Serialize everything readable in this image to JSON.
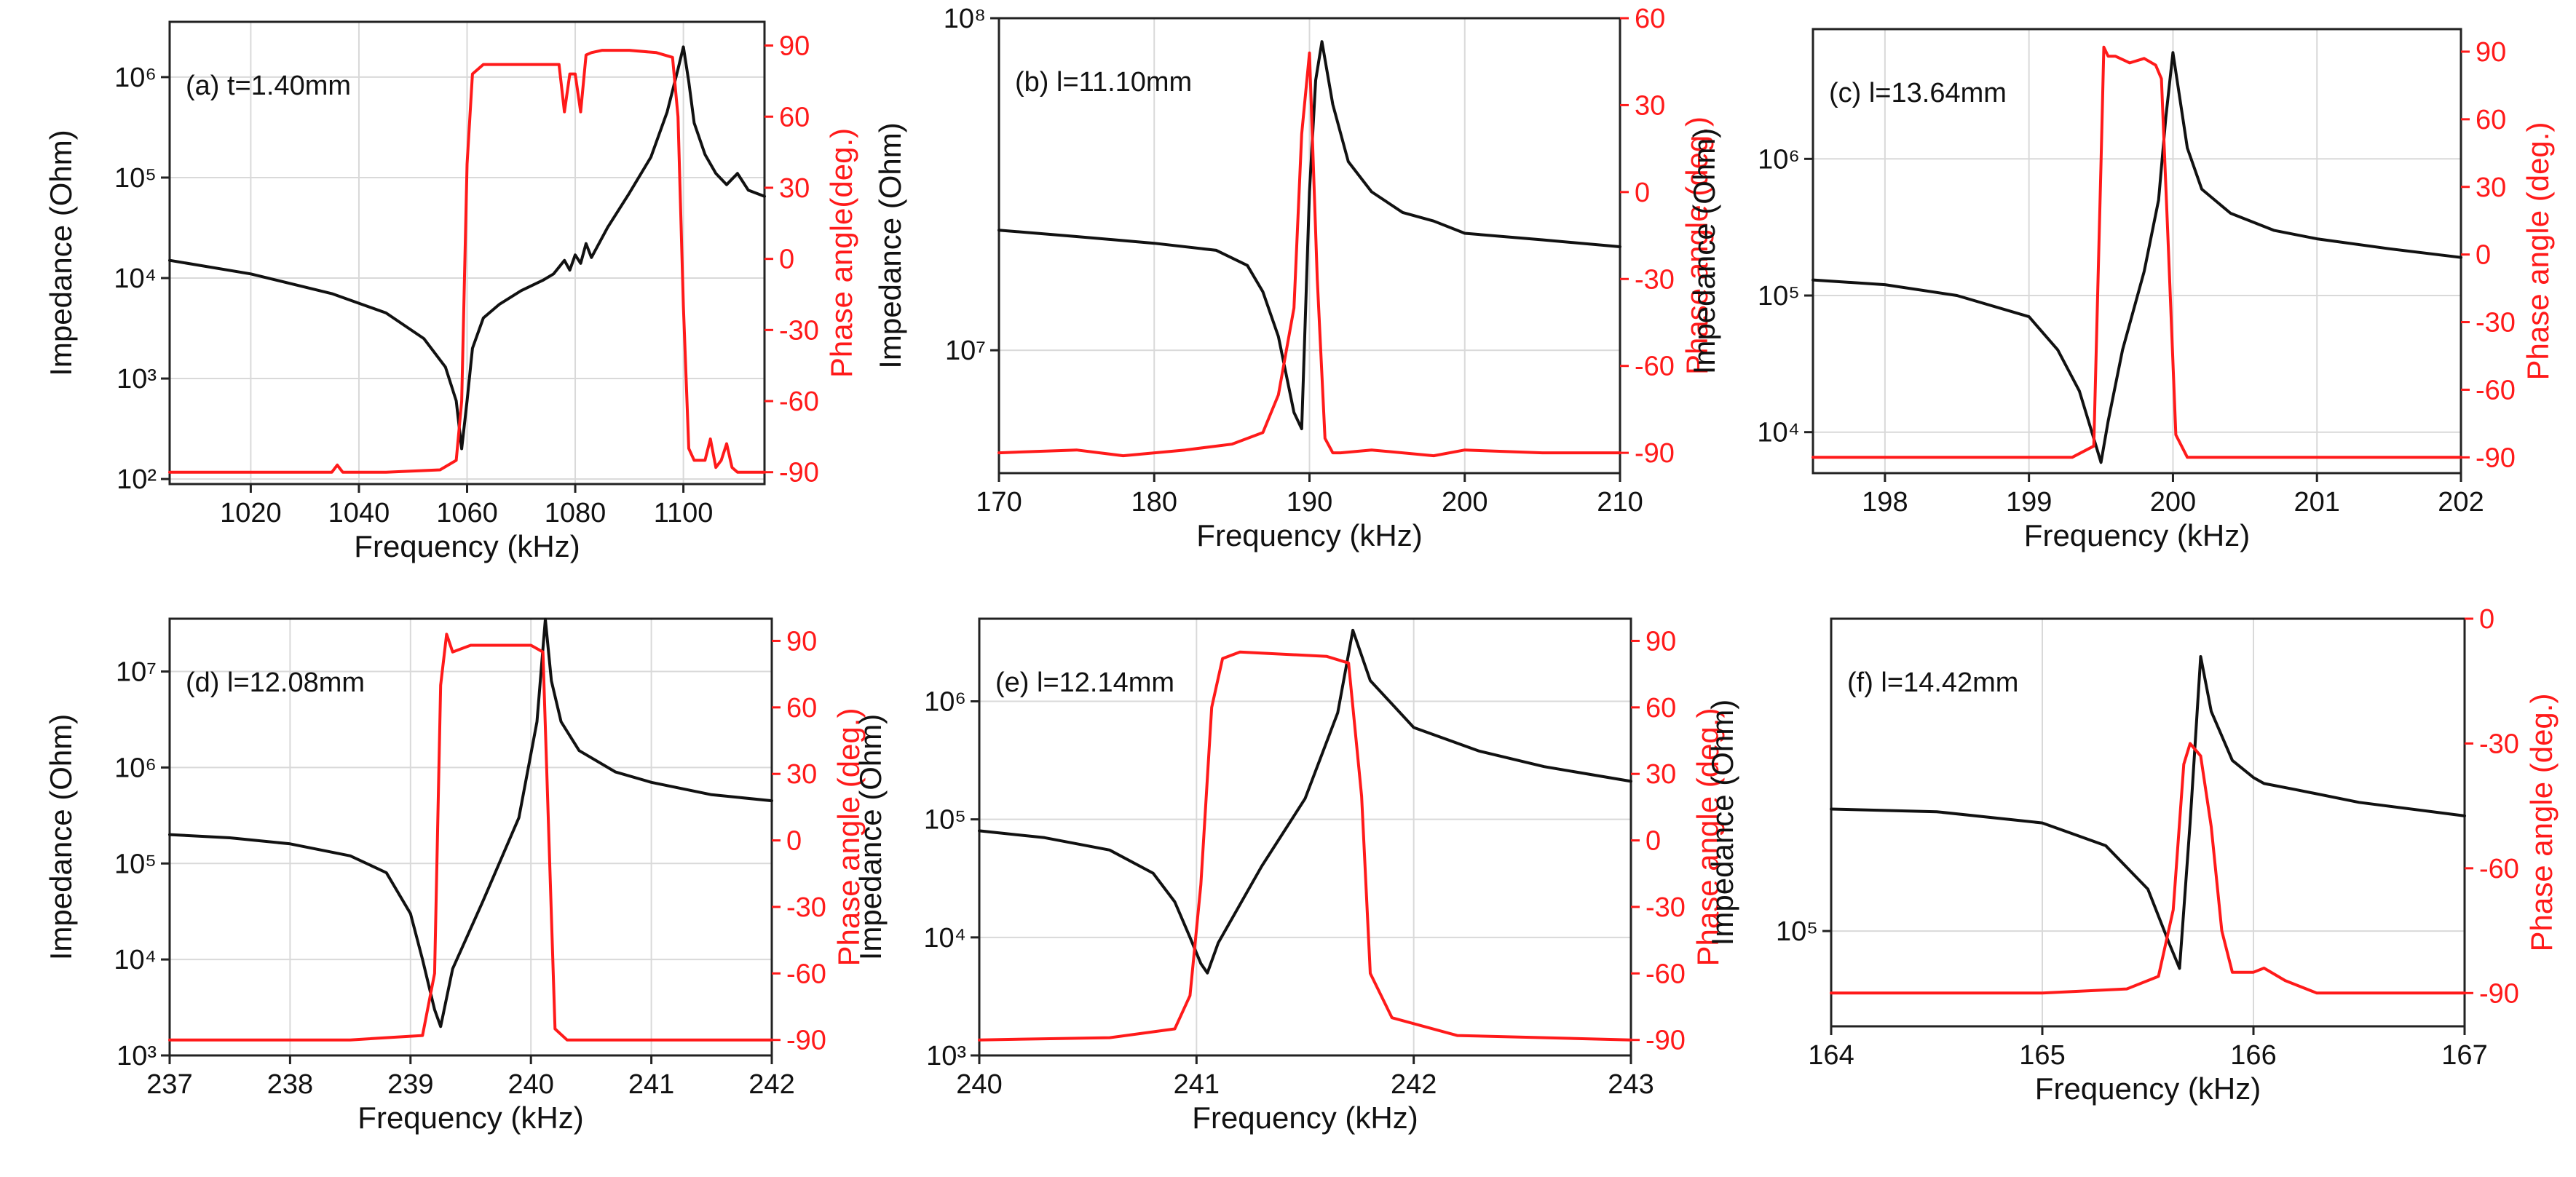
{
  "figure": {
    "description_domain": "impedance-phase spectra",
    "colors": {
      "impedance": "#111111",
      "phase": "#ff1a1a",
      "grid": "#d9d9d9",
      "axis": "#222222"
    }
  },
  "chart_data": [
    {
      "type": "line",
      "panel_label": "(a) t=1.40mm",
      "xlabel": "Frequency (kHz)",
      "ylabel_left": "Impedance (Ohm)",
      "ylabel_right": "Phase angle(deg.)",
      "left_scale": "log",
      "xlim": [
        1005,
        1115
      ],
      "x_ticks": [
        1020,
        1040,
        1060,
        1080,
        1100
      ],
      "ylim_left_log10": [
        1.95,
        6.55
      ],
      "y_ticks_left": [
        2,
        3,
        4,
        5,
        6
      ],
      "y_ticks_left_labels": [
        "10²",
        "10³",
        "10⁴",
        "10⁵",
        "10⁶"
      ],
      "ylim_right": [
        -95,
        100
      ],
      "y_ticks_right": [
        90,
        60,
        30,
        0,
        -30,
        -60,
        -90
      ],
      "series": [
        {
          "name": "Impedance",
          "color": "#111111",
          "x": [
            1005,
            1020,
            1035,
            1045,
            1052,
            1056,
            1058,
            1059,
            1060,
            1061,
            1063,
            1066,
            1070,
            1074,
            1076,
            1078,
            1079,
            1080,
            1081,
            1082,
            1083,
            1086,
            1090,
            1094,
            1097,
            1099,
            1100,
            1101,
            1102,
            1104,
            1106,
            1108,
            1110,
            1112,
            1115
          ],
          "values": [
            15000,
            11000,
            7000,
            4500,
            2500,
            1300,
            600,
            200,
            600,
            2000,
            4000,
            5500,
            7500,
            9500,
            11000,
            15000,
            12000,
            17000,
            14000,
            22000,
            16000,
            32000,
            70000,
            160000,
            450000,
            1200000,
            2000000,
            900000,
            350000,
            170000,
            110000,
            85000,
            110000,
            75000,
            65000
          ]
        },
        {
          "name": "Phase angle",
          "color": "#ff1a1a",
          "x": [
            1005,
            1020,
            1035,
            1036,
            1037,
            1045,
            1055,
            1058,
            1059,
            1060,
            1061,
            1063,
            1070,
            1077,
            1078,
            1079,
            1080,
            1081,
            1082,
            1083,
            1085,
            1090,
            1095,
            1098,
            1099,
            1100,
            1101,
            1102,
            1104,
            1105,
            1106,
            1107,
            1108,
            1109,
            1110,
            1112,
            1115
          ],
          "values": [
            -90,
            -90,
            -90,
            -87,
            -90,
            -90,
            -89,
            -85,
            -60,
            40,
            78,
            82,
            82,
            82,
            62,
            78,
            78,
            62,
            86,
            87,
            88,
            88,
            87,
            85,
            60,
            -20,
            -80,
            -85,
            -85,
            -76,
            -88,
            -85,
            -78,
            -88,
            -90,
            -90,
            -90
          ]
        }
      ]
    },
    {
      "type": "line",
      "panel_label": "(b) l=11.10mm",
      "xlabel": "Frequency (kHz)",
      "ylabel_left": "Impedance (Ohm)",
      "ylabel_right": "Phase angle (deg.)",
      "left_scale": "log",
      "xlim": [
        170,
        210
      ],
      "x_ticks": [
        170,
        180,
        190,
        200,
        210
      ],
      "ylim_left_log10": [
        6.63,
        8.0
      ],
      "y_ticks_left": [
        7,
        8
      ],
      "y_ticks_left_labels": [
        "10⁷",
        "10⁸"
      ],
      "ylim_right": [
        -97,
        60
      ],
      "y_ticks_right": [
        60,
        30,
        0,
        -30,
        -60,
        -90
      ],
      "series": [
        {
          "name": "Impedance",
          "color": "#111111",
          "x": [
            170,
            175,
            180,
            184,
            186,
            187,
            188,
            189,
            189.5,
            190,
            190.4,
            190.8,
            191.5,
            192.5,
            194,
            196,
            198,
            200,
            205,
            210
          ],
          "values": [
            23000000,
            22000000,
            21000000,
            20000000,
            18000000,
            15000000,
            11000000,
            6500000,
            5800000,
            30000000,
            65000000,
            85000000,
            55000000,
            37000000,
            30000000,
            26000000,
            24500000,
            22500000,
            21500000,
            20500000
          ]
        },
        {
          "name": "Phase angle",
          "color": "#ff1a1a",
          "x": [
            170,
            175,
            178,
            182,
            185,
            187,
            188,
            189,
            189.5,
            190,
            190.5,
            191,
            191.5,
            192,
            194,
            198,
            200,
            205,
            210
          ],
          "values": [
            -90,
            -89,
            -91,
            -89,
            -87,
            -83,
            -70,
            -40,
            20,
            48,
            -30,
            -85,
            -90,
            -90,
            -89,
            -91,
            -89,
            -90,
            -90
          ]
        }
      ]
    },
    {
      "type": "line",
      "panel_label": "(c) l=13.64mm",
      "xlabel": "Frequency (kHz)",
      "ylabel_left": "Impedance (Ohm)",
      "ylabel_right": "Phase angle (deg.)",
      "left_scale": "log",
      "xlim": [
        197.5,
        202
      ],
      "x_ticks": [
        198,
        199,
        200,
        201,
        202
      ],
      "ylim_left_log10": [
        3.7,
        6.95
      ],
      "y_ticks_left": [
        4,
        5,
        6
      ],
      "y_ticks_left_labels": [
        "10⁴",
        "10⁵",
        "10⁶"
      ],
      "ylim_right": [
        -97,
        100
      ],
      "y_ticks_right": [
        90,
        60,
        30,
        0,
        -30,
        -60,
        -90
      ],
      "series": [
        {
          "name": "Impedance",
          "color": "#111111",
          "x": [
            197.5,
            198,
            198.5,
            199,
            199.2,
            199.35,
            199.45,
            199.5,
            199.55,
            199.65,
            199.8,
            199.9,
            199.95,
            200.0,
            200.1,
            200.2,
            200.4,
            200.7,
            201,
            201.5,
            202
          ],
          "values": [
            130000,
            120000,
            100000,
            70000,
            40000,
            20000,
            9000,
            6000,
            12000,
            40000,
            150000,
            500000,
            2000000,
            6000000,
            1200000,
            600000,
            400000,
            300000,
            260000,
            220000,
            190000
          ]
        },
        {
          "name": "Phase angle",
          "color": "#ff1a1a",
          "x": [
            197.5,
            198.5,
            199.3,
            199.45,
            199.5,
            199.52,
            199.55,
            199.6,
            199.7,
            199.8,
            199.88,
            199.92,
            199.97,
            200.02,
            200.1,
            201,
            202
          ],
          "values": [
            -90,
            -90,
            -90,
            -85,
            40,
            92,
            88,
            88,
            85,
            87,
            84,
            78,
            0,
            -80,
            -90,
            -90,
            -90
          ]
        }
      ]
    },
    {
      "type": "line",
      "panel_label": "(d) l=12.08mm",
      "xlabel": "Frequency (kHz)",
      "ylabel_left": "Impedance (Ohm)",
      "ylabel_right": "Phase angle (deg.)",
      "left_scale": "log",
      "xlim": [
        237,
        242
      ],
      "x_ticks": [
        237,
        238,
        239,
        240,
        241,
        242
      ],
      "ylim_left_log10": [
        3.0,
        7.55
      ],
      "y_ticks_left": [
        3,
        4,
        5,
        6,
        7
      ],
      "y_ticks_left_labels": [
        "10³",
        "10⁴",
        "10⁵",
        "10⁶",
        "10⁷"
      ],
      "ylim_right": [
        -97,
        100
      ],
      "y_ticks_right": [
        90,
        60,
        30,
        0,
        -30,
        -60,
        -90
      ],
      "series": [
        {
          "name": "Impedance",
          "color": "#111111",
          "x": [
            237,
            237.5,
            238,
            238.5,
            238.8,
            239.0,
            239.1,
            239.2,
            239.25,
            239.35,
            239.6,
            239.9,
            240.05,
            240.12,
            240.17,
            240.25,
            240.4,
            240.7,
            241,
            241.5,
            242
          ],
          "values": [
            200000,
            185000,
            160000,
            120000,
            80000,
            30000,
            10000,
            3000,
            2000,
            8000,
            40000,
            300000,
            3000000,
            35000000,
            8000000,
            3000000,
            1500000,
            900000,
            700000,
            520000,
            450000
          ]
        },
        {
          "name": "Phase angle",
          "color": "#ff1a1a",
          "x": [
            237,
            238.5,
            239.1,
            239.2,
            239.25,
            239.3,
            239.35,
            239.5,
            240.0,
            240.1,
            240.15,
            240.2,
            240.3,
            241,
            242
          ],
          "values": [
            -90,
            -90,
            -88,
            -60,
            70,
            93,
            85,
            88,
            88,
            85,
            0,
            -85,
            -90,
            -90,
            -90
          ]
        }
      ]
    },
    {
      "type": "line",
      "panel_label": "(e) l=12.14mm",
      "xlabel": "Frequency (kHz)",
      "ylabel_left": "Impedance (Ohm)",
      "ylabel_right": "Phase angle (deg.)",
      "left_scale": "log",
      "xlim": [
        240,
        243
      ],
      "x_ticks": [
        240,
        241,
        242,
        243
      ],
      "ylim_left_log10": [
        3.0,
        6.7
      ],
      "y_ticks_left": [
        3,
        4,
        5,
        6
      ],
      "y_ticks_left_labels": [
        "10³",
        "10⁴",
        "10⁵",
        "10⁶"
      ],
      "ylim_right": [
        -97,
        100
      ],
      "y_ticks_right": [
        90,
        60,
        30,
        0,
        -30,
        -60,
        -90
      ],
      "series": [
        {
          "name": "Impedance",
          "color": "#111111",
          "x": [
            240,
            240.3,
            240.6,
            240.8,
            240.9,
            240.97,
            241.02,
            241.05,
            241.1,
            241.3,
            241.5,
            241.65,
            241.72,
            241.8,
            242,
            242.3,
            242.6,
            243
          ],
          "values": [
            80000,
            70000,
            55000,
            35000,
            20000,
            10000,
            6000,
            5000,
            9000,
            40000,
            150000,
            800000,
            4000000,
            1500000,
            600000,
            380000,
            280000,
            210000
          ]
        },
        {
          "name": "Phase angle",
          "color": "#ff1a1a",
          "x": [
            240,
            240.6,
            240.9,
            240.97,
            241.02,
            241.07,
            241.12,
            241.2,
            241.6,
            241.7,
            241.76,
            241.8,
            241.9,
            242.2,
            243
          ],
          "values": [
            -90,
            -89,
            -85,
            -70,
            -20,
            60,
            82,
            85,
            83,
            80,
            20,
            -60,
            -80,
            -88,
            -90
          ]
        }
      ]
    },
    {
      "type": "line",
      "panel_label": "(f) l=14.42mm",
      "xlabel": "Frequency (kHz)",
      "ylabel_left": "Impedance (Ohm)",
      "ylabel_right": "Phase angle (deg.)",
      "left_scale": "log",
      "xlim": [
        164,
        167
      ],
      "x_ticks": [
        164,
        165,
        166,
        167
      ],
      "ylim_left_log10": [
        4.82,
        5.59
      ],
      "y_ticks_left": [
        5
      ],
      "y_ticks_left_labels": [
        "10⁵"
      ],
      "ylim_right": [
        -98,
        0
      ],
      "y_ticks_right": [
        0,
        -30,
        -60,
        -90
      ],
      "series": [
        {
          "name": "Impedance",
          "color": "#111111",
          "x": [
            164,
            164.5,
            165,
            165.3,
            165.5,
            165.6,
            165.65,
            165.7,
            165.75,
            165.8,
            165.9,
            166,
            166.05,
            166.2,
            166.5,
            167
          ],
          "values": [
            170000,
            168000,
            160000,
            145000,
            120000,
            95000,
            85000,
            160000,
            330000,
            260000,
            210000,
            195000,
            190000,
            185000,
            175000,
            165000
          ]
        },
        {
          "name": "Phase angle",
          "color": "#ff1a1a",
          "x": [
            164,
            165,
            165.4,
            165.55,
            165.62,
            165.67,
            165.7,
            165.75,
            165.8,
            165.85,
            165.9,
            166.0,
            166.05,
            166.15,
            166.3,
            167
          ],
          "values": [
            -90,
            -90,
            -89,
            -86,
            -70,
            -35,
            -30,
            -33,
            -50,
            -75,
            -85,
            -85,
            -84,
            -87,
            -90,
            -90
          ]
        }
      ]
    }
  ]
}
